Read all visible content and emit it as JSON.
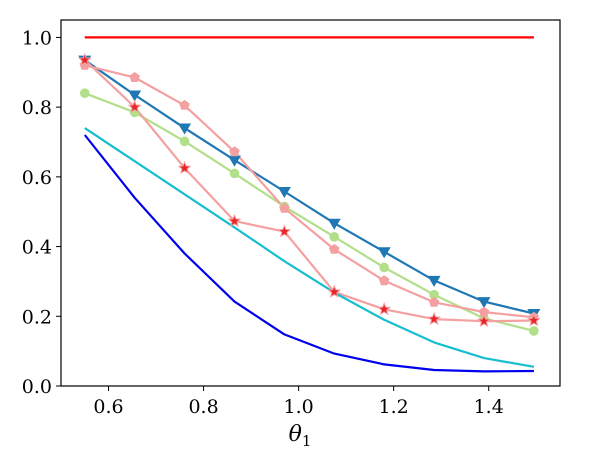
{
  "chart_data": {
    "type": "line",
    "xlabel": "θ",
    "xlabel_sub": "1",
    "ylabel": "",
    "xlim": [
      0.5,
      1.55
    ],
    "ylim": [
      0.0,
      1.05
    ],
    "x_ticks": [
      0.6,
      0.8,
      1.0,
      1.2,
      1.4
    ],
    "x_tick_labels": [
      "0.6",
      "0.8",
      "1.0",
      "1.2",
      "1.4"
    ],
    "y_ticks": [
      0.0,
      0.2,
      0.4,
      0.6,
      0.8,
      1.0
    ],
    "y_tick_labels": [
      "0.0",
      "0.2",
      "0.4",
      "0.6",
      "0.8",
      "1.0"
    ],
    "grid": false,
    "x": [
      0.55,
      0.655,
      0.76,
      0.865,
      0.97,
      1.075,
      1.18,
      1.285,
      1.39,
      1.495
    ],
    "series": [
      {
        "color": "#ff0000",
        "marker": "none",
        "values": [
          1.0,
          1.0,
          1.0,
          1.0,
          1.0,
          1.0,
          1.0,
          1.0,
          1.0,
          1.0
        ]
      },
      {
        "color": "#1f77b4",
        "marker": "triangle-down",
        "values": [
          0.935,
          0.835,
          0.74,
          0.648,
          0.558,
          0.467,
          0.385,
          0.303,
          0.242,
          0.208
        ]
      },
      {
        "color": "#b2df8a",
        "marker": "circle",
        "values": [
          0.84,
          0.785,
          0.702,
          0.61,
          0.515,
          0.428,
          0.34,
          0.262,
          0.194,
          0.158
        ]
      },
      {
        "color": "#f4a0a0",
        "marker": "pentagon",
        "values": [
          0.92,
          0.885,
          0.805,
          0.672,
          0.51,
          0.392,
          0.302,
          0.24,
          0.212,
          0.197
        ]
      },
      {
        "color": "#f4a0a0",
        "marker": "star",
        "values": [
          0.935,
          0.8,
          0.625,
          0.473,
          0.443,
          0.27,
          0.22,
          0.192,
          0.186,
          0.188
        ]
      },
      {
        "color": "#17becf",
        "marker": "none",
        "values": [
          0.74,
          0.645,
          0.55,
          0.455,
          0.358,
          0.268,
          0.19,
          0.125,
          0.08,
          0.055
        ]
      },
      {
        "color": "#0000ee",
        "marker": "none",
        "values": [
          0.72,
          0.54,
          0.38,
          0.242,
          0.148,
          0.093,
          0.062,
          0.046,
          0.042,
          0.043
        ]
      }
    ]
  }
}
